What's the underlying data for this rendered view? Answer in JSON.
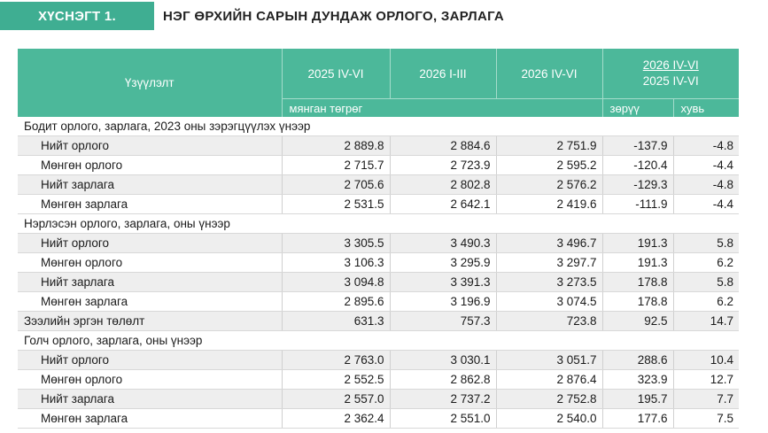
{
  "header": {
    "badge": "ХҮСНЭГТ 1.",
    "title": "НЭГ ӨРХИЙН САРЫН ДУНДАЖ ОРЛОГО, ЗАРЛАГА"
  },
  "table": {
    "col_indicator": "Үзүүлэлт",
    "col1": "2025 IV-VI",
    "col2": "2026 I-III",
    "col3": "2026 IV-VI",
    "ratio_top": "2026 IV-VI",
    "ratio_bottom": "2025 IV-VI",
    "unit_label": "мянган төгрөг",
    "unit_diff": "зөрүү",
    "unit_pct": "хувь",
    "sections": [
      {
        "title": "Бодит орлого, зарлага, 2023 оны зэрэгцүүлэх үнээр",
        "rows": [
          [
            "Нийт орлого",
            "2 889.8",
            "2 884.6",
            "2 751.9",
            "-137.9",
            "-4.8"
          ],
          [
            "Мөнгөн орлого",
            "2 715.7",
            "2 723.9",
            "2 595.2",
            "-120.4",
            "-4.4"
          ],
          [
            "Нийт зарлага",
            "2 705.6",
            "2 802.8",
            "2 576.2",
            "-129.3",
            "-4.8"
          ],
          [
            "Мөнгөн зарлага",
            "2 531.5",
            "2 642.1",
            "2 419.6",
            "-111.9",
            "-4.4"
          ]
        ]
      },
      {
        "title": "Нэрлэсэн орлого, зарлага, оны үнээр",
        "rows": [
          [
            "Нийт орлого",
            "3 305.5",
            "3 490.3",
            "3 496.7",
            "191.3",
            "5.8"
          ],
          [
            "Мөнгөн орлого",
            "3 106.3",
            "3 295.9",
            "3 297.7",
            "191.3",
            "6.2"
          ],
          [
            "Нийт зарлага",
            "3 094.8",
            "3 391.3",
            "3 273.5",
            "178.8",
            "5.8"
          ],
          [
            "Мөнгөн зарлага",
            "2 895.6",
            "3 196.9",
            "3 074.5",
            "178.8",
            "6.2"
          ]
        ],
        "extra": [
          "Зээлийн эргэн төлөлт",
          "631.3",
          "757.3",
          "723.8",
          "92.5",
          "14.7"
        ]
      },
      {
        "title": "Голч орлого, зарлага, оны үнээр",
        "rows": [
          [
            "Нийт орлого",
            "2 763.0",
            "3 030.1",
            "3 051.7",
            "288.6",
            "10.4"
          ],
          [
            "Мөнгөн орлого",
            "2 552.5",
            "2 862.8",
            "2 876.4",
            "323.9",
            "12.7"
          ],
          [
            "Нийт зарлага",
            "2 557.0",
            "2 737.2",
            "2 752.8",
            "195.7",
            "7.7"
          ],
          [
            "Мөнгөн зарлага",
            "2 362.4",
            "2 551.0",
            "2 540.0",
            "177.6",
            "7.5"
          ]
        ]
      }
    ]
  }
}
